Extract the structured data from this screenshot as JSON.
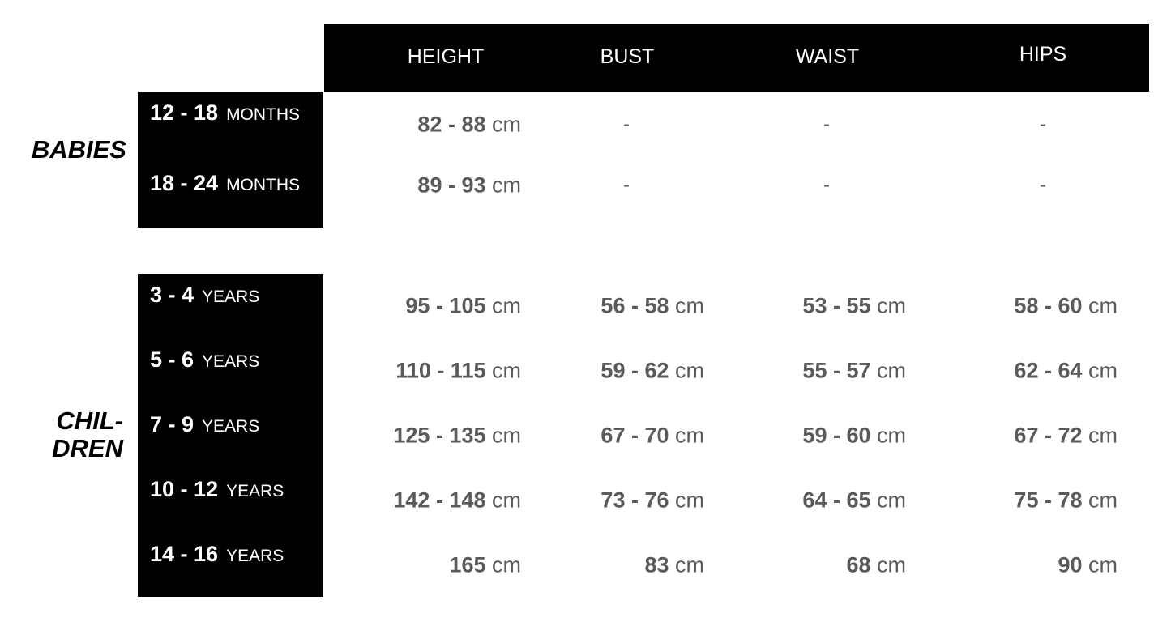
{
  "headers": [
    "HEIGHT",
    "BUST",
    "WAIST",
    "HIPS"
  ],
  "unit": "cm",
  "sections": [
    {
      "title": "BABIES",
      "rows": [
        {
          "range": "12 - 18",
          "unit_label": "MONTHS",
          "values": [
            "82 - 88",
            "-",
            "-",
            "-"
          ]
        },
        {
          "range": "18 - 24",
          "unit_label": "MONTHS",
          "values": [
            "89 - 93",
            "-",
            "-",
            "-"
          ]
        }
      ]
    },
    {
      "title": "CHIL-\nDREN",
      "rows": [
        {
          "range": "3 - 4",
          "unit_label": "YEARS",
          "values": [
            "95 - 105",
            "56 - 58",
            "53 - 55",
            "58 - 60"
          ]
        },
        {
          "range": "5 - 6",
          "unit_label": "YEARS",
          "values": [
            "110 - 115",
            "59 - 62",
            "55 - 57",
            "62 - 64"
          ]
        },
        {
          "range": "7 - 9",
          "unit_label": "YEARS",
          "values": [
            "125 - 135",
            "67 - 70",
            "59 - 60",
            "67 - 72"
          ]
        },
        {
          "range": "10 - 12",
          "unit_label": "YEARS",
          "values": [
            "142 - 148",
            "73 - 76",
            "64 - 65",
            "75 - 78"
          ]
        },
        {
          "range": "14 - 16",
          "unit_label": "YEARS",
          "values": [
            "165",
            "83",
            "68",
            "90"
          ]
        }
      ]
    }
  ]
}
